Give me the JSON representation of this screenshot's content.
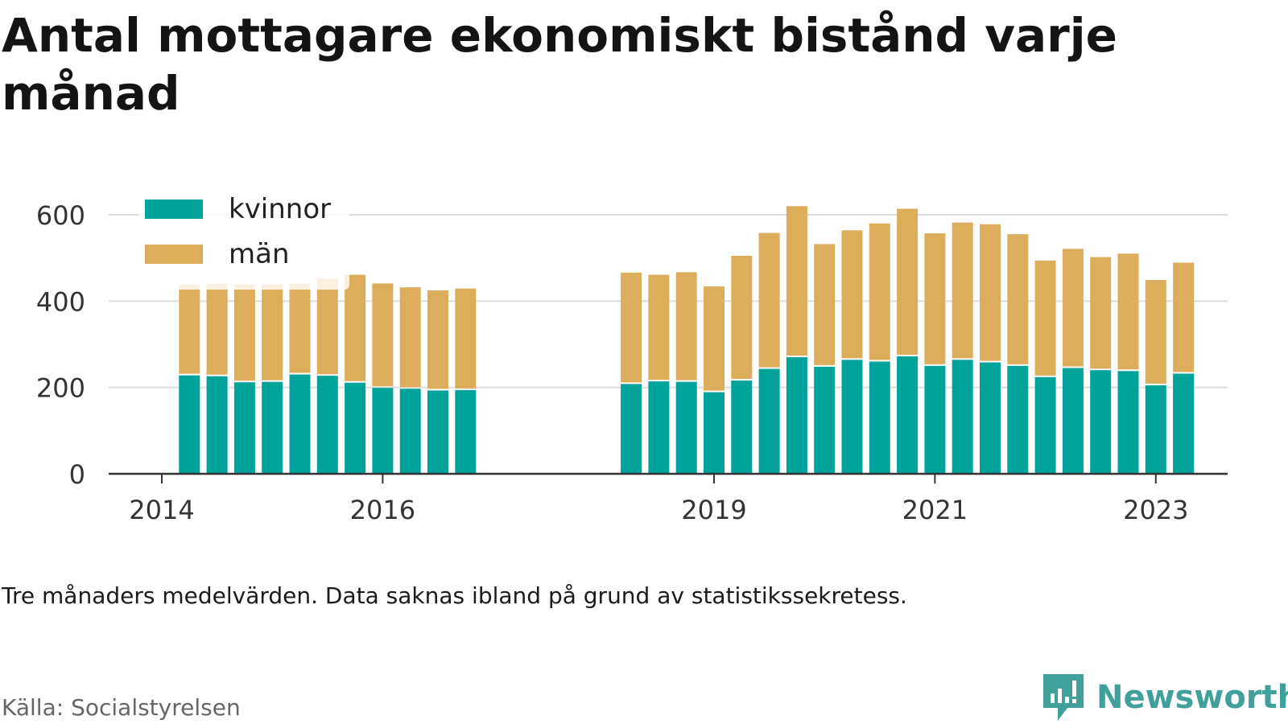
{
  "title": "Antal mottagare ekonomiskt bistånd varje månad",
  "note": "Tre månaders medelvärden. Data saknas ibland på grund av statistikssekretess.",
  "source": "Källa: Socialstyrelsen",
  "brand": {
    "name": "Newsworthy",
    "color": "#41a19a",
    "icon": "newsworthy-logo-icon"
  },
  "colors": {
    "kvinnor": "#00a39a",
    "man": "#dcae5c",
    "grid": "#dddddd",
    "axis": "#333333"
  },
  "legend": [
    {
      "key": "kvinnor",
      "label": "kvinnor"
    },
    {
      "key": "man",
      "label": "män"
    }
  ],
  "chart_data": {
    "type": "bar",
    "stacked": true,
    "title": "Antal mottagare ekonomiskt bistånd varje månad",
    "xlabel": "",
    "ylabel": "",
    "ylim": [
      0,
      650
    ],
    "yticks": [
      0,
      200,
      400,
      600
    ],
    "xlim": [
      2014.0,
      2023.75
    ],
    "xticks": [
      2014,
      2016,
      2019,
      2021,
      2023
    ],
    "grid": true,
    "legend_position": "top-left",
    "x": [
      2014.25,
      2014.5,
      2014.75,
      2015.0,
      2015.25,
      2015.5,
      2015.75,
      2016.0,
      2016.25,
      2016.5,
      2016.75,
      2018.25,
      2018.5,
      2018.75,
      2019.0,
      2019.25,
      2019.5,
      2019.75,
      2020.0,
      2020.25,
      2020.5,
      2020.75,
      2021.0,
      2021.25,
      2021.5,
      2021.75,
      2022.0,
      2022.25,
      2022.5,
      2022.75,
      2023.0,
      2023.25
    ],
    "series": [
      {
        "name": "kvinnor",
        "values": [
          228,
          226,
          212,
          213,
          230,
          227,
          211,
          199,
          197,
          193,
          194,
          208,
          214,
          213,
          189,
          216,
          243,
          270,
          248,
          264,
          260,
          272,
          250,
          264,
          258,
          250,
          224,
          245,
          240,
          238,
          205,
          232
        ]
      },
      {
        "name": "män",
        "values": [
          210,
          214,
          227,
          226,
          210,
          225,
          250,
          242,
          235,
          232,
          235,
          258,
          247,
          254,
          245,
          289,
          315,
          350,
          284,
          300,
          320,
          342,
          307,
          318,
          320,
          305,
          270,
          276,
          262,
          272,
          244,
          257
        ]
      }
    ]
  }
}
